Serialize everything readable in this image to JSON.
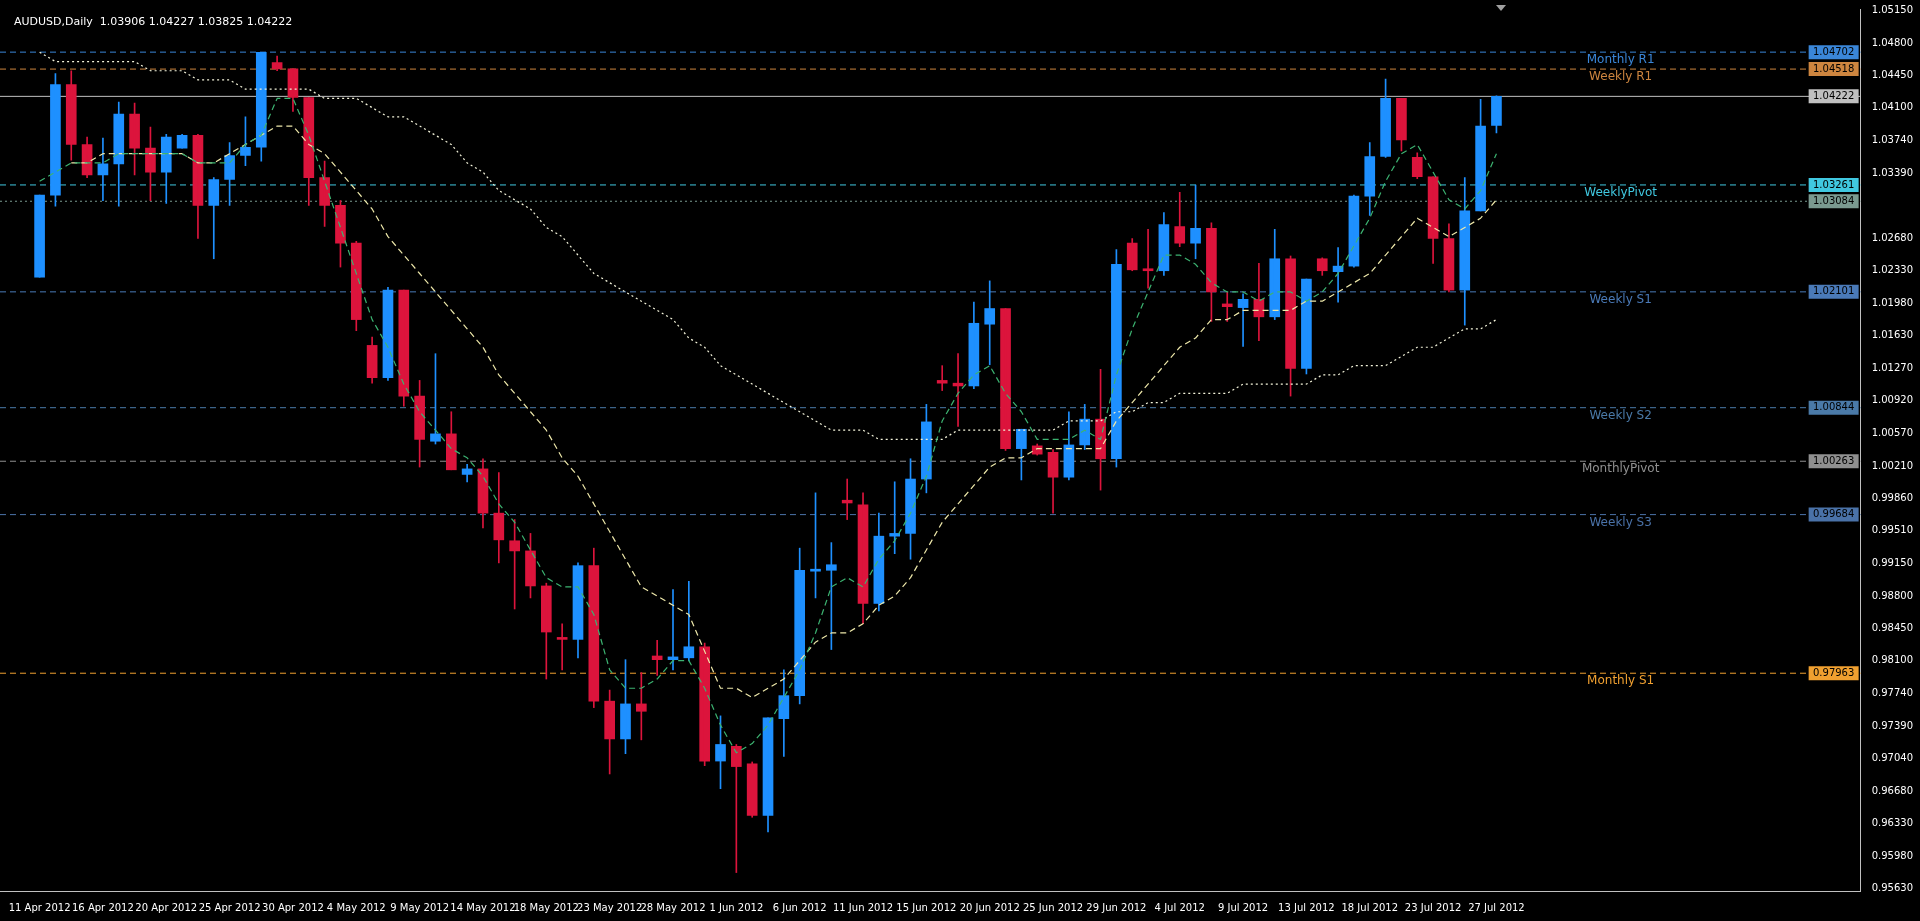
{
  "chart_data": {
    "type": "candlestick",
    "title": "AUDUSD,Daily  1.03906 1.04227 1.03825 1.04222",
    "categories": [
      "11 Apr 2012",
      null,
      null,
      null,
      "16 Apr 2012",
      null,
      null,
      null,
      "20 Apr 2012",
      null,
      null,
      null,
      "25 Apr 2012",
      null,
      null,
      null,
      "30 Apr 2012",
      null,
      null,
      null,
      "4 May 2012",
      null,
      null,
      null,
      "9 May 2012",
      null,
      null,
      null,
      "14 May 2012",
      null,
      null,
      null,
      "18 May 2012",
      null,
      null,
      null,
      "23 May 2012",
      null,
      null,
      null,
      "28 May 2012",
      null,
      null,
      null,
      "1 Jun 2012",
      null,
      null,
      null,
      "6 Jun 2012",
      null,
      null,
      null,
      "11 Jun 2012",
      null,
      null,
      null,
      "15 Jun 2012",
      null,
      null,
      null,
      "20 Jun 2012",
      null,
      null,
      null,
      "25 Jun 2012",
      null,
      null,
      null,
      "29 Jun 2012",
      null,
      null,
      null,
      "4 Jul 2012",
      null,
      null,
      null,
      "9 Jul 2012",
      null,
      null,
      null,
      "13 Jul 2012",
      null,
      null,
      null,
      "18 Jul 2012",
      null,
      null,
      null,
      "23 Jul 2012",
      null,
      null,
      null,
      "27 Jul 2012"
    ],
    "ohlc": [
      [
        1.0226,
        1.0315,
        1.0226,
        1.0315
      ],
      [
        1.0315,
        1.0447,
        1.0303,
        1.0435
      ],
      [
        1.0435,
        1.045,
        1.0353,
        1.037
      ],
      [
        1.037,
        1.0378,
        1.0334,
        1.0337
      ],
      [
        1.0337,
        1.0377,
        1.0309,
        1.0349
      ],
      [
        1.0349,
        1.0416,
        1.0303,
        1.0403
      ],
      [
        1.0403,
        1.0415,
        1.0337,
        1.0366
      ],
      [
        1.0366,
        1.0389,
        1.0309,
        1.034
      ],
      [
        1.034,
        1.0381,
        1.0306,
        1.0378
      ],
      [
        1.0366,
        1.0381,
        1.0366,
        1.038
      ],
      [
        1.038,
        1.0381,
        1.0268,
        1.0304
      ],
      [
        1.0304,
        1.0334,
        1.0246,
        1.0332
      ],
      [
        1.0332,
        1.0372,
        1.0304,
        1.0358
      ],
      [
        1.0358,
        1.04,
        1.0347,
        1.0367
      ],
      [
        1.0367,
        1.047,
        1.0352,
        1.047
      ],
      [
        1.0459,
        1.0466,
        1.045,
        1.0452
      ],
      [
        1.0452,
        1.0452,
        1.0406,
        1.0421
      ],
      [
        1.0421,
        1.0421,
        1.0304,
        1.0334
      ],
      [
        1.0334,
        1.0352,
        1.0281,
        1.0304
      ],
      [
        1.0304,
        1.0309,
        1.0237,
        1.0263
      ],
      [
        1.0263,
        1.0265,
        1.0168,
        1.018
      ],
      [
        1.0152,
        1.0161,
        1.0111,
        1.0117
      ],
      [
        1.0117,
        1.0215,
        1.0114,
        1.0212
      ],
      [
        1.0212,
        1.0212,
        1.0086,
        1.0097
      ],
      [
        1.0097,
        1.0114,
        1.002,
        1.005
      ],
      [
        1.0048,
        1.0143,
        1.0045,
        1.0056
      ],
      [
        1.0056,
        1.008,
        1.0017,
        1.0017
      ],
      [
        1.0012,
        1.0023,
        1.0004,
        1.0018
      ],
      [
        1.0018,
        1.0029,
        0.9954,
        0.997
      ],
      [
        0.997,
        1.0014,
        0.9916,
        0.9941
      ],
      [
        0.994,
        0.9963,
        0.9866,
        0.9929
      ],
      [
        0.9929,
        0.9948,
        0.9878,
        0.9891
      ],
      [
        0.9891,
        0.9894,
        0.979,
        0.9841
      ],
      [
        0.9835,
        0.985,
        0.98,
        0.9833
      ],
      [
        0.9833,
        0.9916,
        0.9813,
        0.9913
      ],
      [
        0.9913,
        0.9932,
        0.9759,
        0.9766
      ],
      [
        0.9766,
        0.9778,
        0.9687,
        0.9725
      ],
      [
        0.9725,
        0.9811,
        0.9709,
        0.9763
      ],
      [
        0.9763,
        0.9797,
        0.9724,
        0.9755
      ],
      [
        0.9815,
        0.9832,
        0.9794,
        0.9811
      ],
      [
        0.9811,
        0.9887,
        0.98,
        0.9814
      ],
      [
        0.9813,
        0.9896,
        0.981,
        0.9825
      ],
      [
        0.9825,
        0.9829,
        0.9696,
        0.9701
      ],
      [
        0.9701,
        0.975,
        0.9671,
        0.9719
      ],
      [
        0.9717,
        0.9719,
        0.958,
        0.9695
      ],
      [
        0.9698,
        0.97,
        0.964,
        0.9642
      ],
      [
        0.9642,
        0.9748,
        0.9624,
        0.9748
      ],
      [
        0.9747,
        0.98,
        0.9706,
        0.9772
      ],
      [
        0.9772,
        0.9932,
        0.9763,
        0.9908
      ],
      [
        0.9907,
        0.9992,
        0.9878,
        0.9909
      ],
      [
        0.9908,
        0.9938,
        0.9822,
        0.9914
      ],
      [
        0.9984,
        1.0007,
        0.9963,
        0.9981
      ],
      [
        0.9979,
        0.9992,
        0.985,
        0.9872
      ],
      [
        0.9872,
        0.997,
        0.9864,
        0.9945
      ],
      [
        0.9945,
        1.0004,
        0.9926,
        0.9948
      ],
      [
        0.9948,
        1.0029,
        0.992,
        1.0007
      ],
      [
        1.0007,
        1.0088,
        0.9992,
        1.0069
      ],
      [
        1.0114,
        1.013,
        1.0103,
        1.0111
      ],
      [
        1.0111,
        1.0143,
        1.0064,
        1.0108
      ],
      [
        1.0108,
        1.0199,
        1.0105,
        1.0176
      ],
      [
        1.0175,
        1.0222,
        1.0131,
        1.0192
      ],
      [
        1.0192,
        1.0192,
        1.0038,
        1.004
      ],
      [
        1.004,
        1.0061,
        1.0006,
        1.0061
      ],
      [
        1.0043,
        1.0045,
        1.0033,
        1.0034
      ],
      [
        1.0036,
        1.0039,
        0.997,
        1.0009
      ],
      [
        1.0009,
        1.008,
        1.0006,
        1.0044
      ],
      [
        1.0044,
        1.0088,
        1.0039,
        1.0072
      ],
      [
        1.0072,
        1.0126,
        0.9995,
        1.0029
      ],
      [
        1.0029,
        1.0256,
        1.002,
        1.024
      ],
      [
        1.0263,
        1.0268,
        1.0233,
        1.0234
      ],
      [
        1.0235,
        1.0278,
        1.0214,
        1.0233
      ],
      [
        1.0233,
        1.0296,
        1.0228,
        1.0283
      ],
      [
        1.0281,
        1.0318,
        1.0259,
        1.0263
      ],
      [
        1.0263,
        1.0326,
        1.0246,
        1.0279
      ],
      [
        1.0279,
        1.0285,
        1.0178,
        1.021
      ],
      [
        1.0197,
        1.021,
        1.0178,
        1.0194
      ],
      [
        1.0193,
        1.0208,
        1.0151,
        1.0202
      ],
      [
        1.0202,
        1.0241,
        1.0157,
        1.0183
      ],
      [
        1.0183,
        1.0278,
        1.018,
        1.0246
      ],
      [
        1.0246,
        1.0249,
        1.0097,
        1.0127
      ],
      [
        1.0127,
        1.0224,
        1.0121,
        1.0224
      ],
      [
        1.0246,
        1.0247,
        1.0228,
        1.0233
      ],
      [
        1.0232,
        1.0258,
        1.0199,
        1.0238
      ],
      [
        1.0238,
        1.0315,
        1.0237,
        1.0314
      ],
      [
        1.0314,
        1.0372,
        1.0293,
        1.0357
      ],
      [
        1.0357,
        1.0441,
        1.0356,
        1.042
      ],
      [
        1.042,
        1.042,
        1.0363,
        1.0375
      ],
      [
        1.0356,
        1.0361,
        1.0333,
        1.0335
      ],
      [
        1.0335,
        1.0335,
        1.0241,
        1.0268
      ],
      [
        1.0268,
        1.0284,
        1.021,
        1.0212
      ],
      [
        1.0212,
        1.0334,
        1.0174,
        1.0298
      ],
      [
        1.0298,
        1.0419,
        1.0298,
        1.039
      ],
      [
        1.03906,
        1.04227,
        1.03825,
        1.04222
      ]
    ],
    "colors": [
      "#1e90ff",
      "#1e90ff",
      "#dc143c",
      "#dc143c",
      "#1e90ff",
      "#1e90ff",
      "#dc143c",
      "#dc143c",
      "#1e90ff",
      "#1e90ff",
      "#dc143c",
      "#1e90ff",
      "#1e90ff",
      "#1e90ff",
      "#1e90ff",
      "#dc143c",
      "#dc143c",
      "#dc143c",
      "#dc143c",
      "#dc143c",
      "#dc143c",
      "#dc143c",
      "#1e90ff",
      "#dc143c",
      "#dc143c",
      "#1e90ff",
      "#dc143c",
      "#1e90ff",
      "#dc143c",
      "#dc143c",
      "#dc143c",
      "#dc143c",
      "#dc143c",
      "#dc143c",
      "#1e90ff",
      "#dc143c",
      "#dc143c",
      "#1e90ff",
      "#dc143c",
      "#dc143c",
      "#1e90ff",
      "#1e90ff",
      "#dc143c",
      "#1e90ff",
      "#dc143c",
      "#dc143c",
      "#1e90ff",
      "#1e90ff",
      "#1e90ff",
      "#1e90ff",
      "#1e90ff",
      "#dc143c",
      "#dc143c",
      "#1e90ff",
      "#1e90ff",
      "#1e90ff",
      "#1e90ff",
      "#dc143c",
      "#dc143c",
      "#1e90ff",
      "#1e90ff",
      "#dc143c",
      "#1e90ff",
      "#dc143c",
      "#dc143c",
      "#1e90ff",
      "#1e90ff",
      "#dc143c",
      "#1e90ff",
      "#dc143c",
      "#dc143c",
      "#1e90ff",
      "#dc143c",
      "#1e90ff",
      "#dc143c",
      "#dc143c",
      "#1e90ff",
      "#dc143c",
      "#1e90ff",
      "#dc143c",
      "#1e90ff",
      "#dc143c",
      "#1e90ff",
      "#1e90ff",
      "#1e90ff",
      "#1e90ff",
      "#dc143c",
      "#dc143c",
      "#dc143c",
      "#dc143c",
      "#1e90ff",
      "#1e90ff",
      "#1e90ff"
    ],
    "series": [
      {
        "type": "line",
        "color": "#3cb371",
        "line_style": "dashed",
        "values": [
          1.033,
          1.034,
          1.035,
          1.035,
          1.035,
          1.036,
          1.036,
          1.036,
          1.036,
          1.036,
          1.035,
          1.035,
          1.035,
          1.037,
          1.038,
          1.042,
          1.042,
          1.038,
          1.033,
          1.028,
          1.023,
          1.018,
          1.015,
          1.011,
          1.008,
          1.006,
          1.004,
          1.003,
          1.001,
          0.998,
          0.996,
          0.993,
          0.99,
          0.989,
          0.989,
          0.986,
          0.98,
          0.978,
          0.978,
          0.979,
          0.981,
          0.981,
          0.978,
          0.974,
          0.971,
          0.972,
          0.974,
          0.977,
          0.98,
          0.984,
          0.989,
          0.99,
          0.989,
          0.992,
          0.994,
          0.997,
          1.001,
          1.007,
          1.01,
          1.012,
          1.013,
          1.01,
          1.008,
          1.005,
          1.005,
          1.005,
          1.006,
          1.005,
          1.012,
          1.017,
          1.021,
          1.025,
          1.025,
          1.024,
          1.022,
          1.021,
          1.021,
          1.02,
          1.021,
          1.021,
          1.02,
          1.021,
          1.023,
          1.026,
          1.029,
          1.033,
          1.036,
          1.037,
          1.034,
          1.031,
          1.03,
          1.032,
          1.036
        ]
      },
      {
        "type": "line",
        "color": "#eee8aa",
        "line_style": "dashed",
        "values": [
          null,
          null,
          1.035,
          1.035,
          1.036,
          1.036,
          1.036,
          1.036,
          1.036,
          1.036,
          1.035,
          1.035,
          1.036,
          1.037,
          1.038,
          1.039,
          1.039,
          1.037,
          1.036,
          1.034,
          1.032,
          1.03,
          1.027,
          1.025,
          1.023,
          1.021,
          1.019,
          1.017,
          1.015,
          1.012,
          1.01,
          1.008,
          1.006,
          1.003,
          1.001,
          0.998,
          0.995,
          0.992,
          0.989,
          0.988,
          0.987,
          0.986,
          0.982,
          0.978,
          0.978,
          0.977,
          0.978,
          0.979,
          0.981,
          0.983,
          0.984,
          0.984,
          0.985,
          0.987,
          0.988,
          0.99,
          0.993,
          0.996,
          0.998,
          1.0,
          1.002,
          1.003,
          1.003,
          1.004,
          1.004,
          1.004,
          1.004,
          1.004,
          1.007,
          1.009,
          1.011,
          1.013,
          1.015,
          1.016,
          1.018,
          1.018,
          1.019,
          1.019,
          1.019,
          1.019,
          1.02,
          1.02,
          1.021,
          1.022,
          1.023,
          1.025,
          1.027,
          1.029,
          1.028,
          1.027,
          1.028,
          1.029,
          1.031
        ]
      },
      {
        "type": "line",
        "color": "#f5f5dc",
        "line_style": "dotted",
        "values": [
          1.047,
          1.046,
          1.046,
          1.046,
          1.046,
          1.046,
          1.046,
          1.045,
          1.045,
          1.045,
          1.044,
          1.044,
          1.044,
          1.043,
          1.043,
          1.043,
          1.043,
          1.043,
          1.042,
          1.042,
          1.042,
          1.041,
          1.04,
          1.04,
          1.039,
          1.038,
          1.037,
          1.035,
          1.034,
          1.032,
          1.031,
          1.03,
          1.028,
          1.027,
          1.025,
          1.023,
          1.022,
          1.021,
          1.02,
          1.019,
          1.018,
          1.016,
          1.015,
          1.013,
          1.012,
          1.011,
          1.01,
          1.009,
          1.008,
          1.007,
          1.006,
          1.006,
          1.006,
          1.005,
          1.005,
          1.005,
          1.005,
          1.005,
          1.006,
          1.006,
          1.006,
          1.006,
          1.006,
          1.006,
          1.006,
          1.007,
          1.007,
          1.007,
          1.008,
          1.008,
          1.009,
          1.009,
          1.01,
          1.01,
          1.01,
          1.01,
          1.011,
          1.011,
          1.011,
          1.011,
          1.011,
          1.012,
          1.012,
          1.013,
          1.013,
          1.013,
          1.014,
          1.015,
          1.015,
          1.016,
          1.017,
          1.017,
          1.018
        ]
      }
    ],
    "marker": "none",
    "ylim": [
      0.956,
      1.0517
    ],
    "yticks": [
      {
        "value": 1.0515,
        "label": "1.05150"
      },
      {
        "value": 1.048,
        "label": "1.04800"
      },
      {
        "value": 1.0445,
        "label": "1.04450"
      },
      {
        "value": 1.041,
        "label": "1.04100"
      },
      {
        "value": 1.0374,
        "label": "1.03740"
      },
      {
        "value": 1.0339,
        "label": "1.03390"
      },
      {
        "value": 1.0268,
        "label": "1.02680"
      },
      {
        "value": 1.0233,
        "label": "1.02330"
      },
      {
        "value": 1.0198,
        "label": "1.01980"
      },
      {
        "value": 1.0163,
        "label": "1.01630"
      },
      {
        "value": 1.0127,
        "label": "1.01270"
      },
      {
        "value": 1.0092,
        "label": "1.00920"
      },
      {
        "value": 1.0057,
        "label": "1.00570"
      },
      {
        "value": 1.0021,
        "label": "1.00210"
      },
      {
        "value": 0.9986,
        "label": "0.99860"
      },
      {
        "value": 0.9951,
        "label": "0.99510"
      },
      {
        "value": 0.9915,
        "label": "0.99150"
      },
      {
        "value": 0.988,
        "label": "0.98800"
      },
      {
        "value": 0.9845,
        "label": "0.98450"
      },
      {
        "value": 0.981,
        "label": "0.98100"
      },
      {
        "value": 0.9774,
        "label": "0.97740"
      },
      {
        "value": 0.9739,
        "label": "0.97390"
      },
      {
        "value": 0.9704,
        "label": "0.97040"
      },
      {
        "value": 0.9668,
        "label": "0.96680"
      },
      {
        "value": 0.9633,
        "label": "0.96330"
      },
      {
        "value": 0.9598,
        "label": "0.95980"
      },
      {
        "value": 0.9563,
        "label": "0.95630"
      }
    ],
    "ref_lines": [
      {
        "axis": "y",
        "value": 1.04702,
        "label": "Monthly R1",
        "color": "#3a86d8",
        "line_style": "dashed"
      },
      {
        "axis": "y",
        "value": 1.04518,
        "label": "Weekly R1",
        "color": "#cd853f",
        "line_style": "dashed"
      },
      {
        "axis": "y",
        "value": 1.04222,
        "label": null,
        "color": "#c0c0c0",
        "line_style": "solid"
      },
      {
        "axis": "y",
        "value": 1.03261,
        "label": "WeeklyPivot",
        "color": "#40c8e0",
        "line_style": "dashed"
      },
      {
        "axis": "y",
        "value": 1.03084,
        "label": null,
        "color": "#7a9a90",
        "line_style": "dotted"
      },
      {
        "axis": "y",
        "value": 1.02101,
        "label": "Weekly S1",
        "color": "#4a7ab8",
        "line_style": "dashed"
      },
      {
        "axis": "y",
        "value": 1.00844,
        "label": "Weekly S2",
        "color": "#4a7aa8",
        "line_style": "dashed"
      },
      {
        "axis": "y",
        "value": 1.00263,
        "label": "MonthlyPivot",
        "color": "#909090",
        "line_style": "dashed"
      },
      {
        "axis": "y",
        "value": 0.99684,
        "label": "Weekly S3",
        "color": "#4a72a8",
        "line_style": "dashed"
      },
      {
        "axis": "y",
        "value": 0.97963,
        "label": "Monthly S1",
        "color": "#f0a030",
        "line_style": "dashed"
      }
    ],
    "annotations": [
      {
        "text": "1.04702",
        "y": 1.04702
      },
      {
        "text": "1.04518",
        "y": 1.04518
      },
      {
        "text": "1.04222",
        "y": 1.04222
      },
      {
        "text": "1.03261",
        "y": 1.03261
      },
      {
        "text": "1.03084",
        "y": 1.03084
      },
      {
        "text": "1.02101",
        "y": 1.02101
      },
      {
        "text": "1.00844",
        "y": 1.00844
      },
      {
        "text": "1.00263",
        "y": 1.00263
      },
      {
        "text": "0.99684",
        "y": 0.99684
      },
      {
        "text": "0.97963",
        "y": 0.97963
      }
    ],
    "legend": false
  }
}
